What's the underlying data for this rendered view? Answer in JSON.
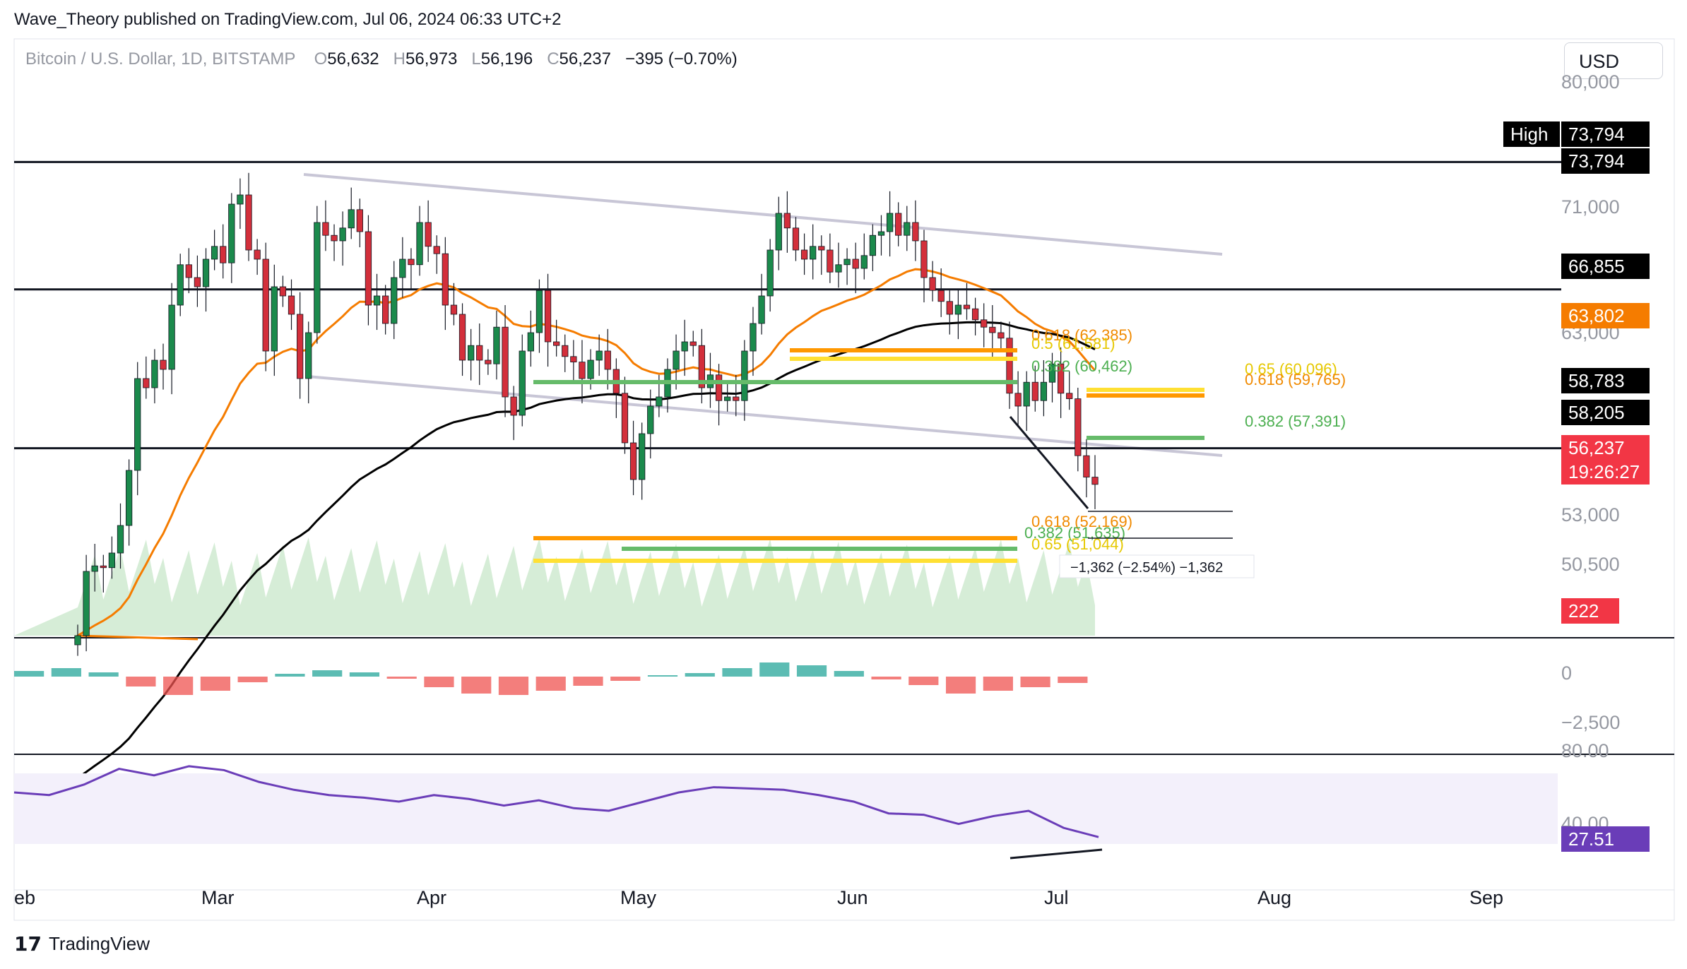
{
  "publisher_line": "Wave_Theory published on TradingView.com, Jul 06, 2024 06:33 UTC+2",
  "symbol": {
    "name": "Bitcoin / U.S. Dollar, 1D, BITSTAMP",
    "o_label": "O",
    "o": "56,632",
    "h_label": "H",
    "h": "56,973",
    "l_label": "L",
    "l": "56,196",
    "c_label": "C",
    "c": "56,237",
    "change": "−395 (−0.70%)"
  },
  "currency_button": "USD",
  "footer_brand": "TradingView",
  "colors": {
    "up": "#1b8a4c",
    "down": "#d32f3b",
    "ema50": "#f57c00",
    "ema200": "#000000",
    "fib_orange": "#ff9800",
    "fib_yellow": "#ffe033",
    "fib_green": "#66bb6a",
    "channel": "#c8c6d6",
    "rsi": "#6a3db8",
    "macd": "#2962ff",
    "signal": "#ff6d00"
  },
  "chart_data": [
    {
      "type": "candlestick",
      "title": "",
      "x_axis_labels": [
        "eb",
        "Mar",
        "Apr",
        "May",
        "Jun",
        "Jul",
        "Aug",
        "Sep"
      ],
      "y_axis_labels": [
        "80,000",
        "71,000",
        "63,000",
        "53,000",
        "50,500",
        "0",
        "−2,500",
        "80.00",
        "40.00"
      ],
      "price_tags": [
        {
          "label": "High",
          "value": "73,794",
          "style": "black"
        },
        {
          "label": "",
          "value": "73,794",
          "style": "black"
        },
        {
          "label": "",
          "value": "66,855",
          "style": "black"
        },
        {
          "label": "",
          "value": "63,802",
          "style": "orange"
        },
        {
          "label": "",
          "value": "58,783",
          "style": "black"
        },
        {
          "label": "",
          "value": "58,205",
          "style": "black"
        },
        {
          "label": "",
          "value": "56,237",
          "style": "red"
        },
        {
          "label": "",
          "value": "19:26:27",
          "style": "red"
        },
        {
          "label": "",
          "value": "222",
          "style": "red"
        },
        {
          "label": "",
          "value": "27.51",
          "style": "purple"
        }
      ],
      "horizontal_levels": [
        73794,
        66855,
        58205
      ],
      "fib_labels": [
        {
          "text": "0.618 (62,385)",
          "color": "orange"
        },
        {
          "text": "0.5 (61,581)",
          "color": "yellow"
        },
        {
          "text": "0.382 (60,462)",
          "color": "green"
        },
        {
          "text": "0.65 (60,096)",
          "color": "yellow"
        },
        {
          "text": "0.618 (59,765)",
          "color": "orange"
        },
        {
          "text": "0.382 (57,391)",
          "color": "green"
        },
        {
          "text": "0.618 (52,169)",
          "color": "orange"
        },
        {
          "text": "0.382 (51,635)",
          "color": "green"
        },
        {
          "text": "0.65 (51,044)",
          "color": "yellow"
        }
      ],
      "measure_label": "−1,362 (−2.54%) −1,362",
      "series": [
        {
          "name": "",
          "type": "candles",
          "values_close": [
            48000,
            51500,
            51800,
            51700,
            52500,
            54000,
            57000,
            62000,
            61500,
            63000,
            62500,
            66000,
            68200,
            67500,
            67000,
            68500,
            69200,
            68300,
            71500,
            72000,
            69000,
            68500,
            63500,
            67000,
            66500,
            65500,
            62000,
            64500,
            70500,
            69800,
            69500,
            70200,
            71200,
            70000,
            66000,
            66500,
            65000,
            67500,
            68500,
            68200,
            70500,
            69200,
            68800,
            66000,
            65500,
            63000,
            63800,
            63000,
            62800,
            64800,
            61000,
            60000,
            63500,
            64500,
            66800,
            64000,
            63800,
            63200,
            62900,
            62000,
            63000,
            63500,
            62500,
            61200,
            58500,
            56500,
            59000,
            60500,
            61000,
            62500,
            63500,
            64000,
            63800,
            61500,
            62200,
            60800,
            61000,
            60800,
            63500,
            65000,
            66500,
            69000,
            71000,
            70200,
            69000,
            68500,
            69200,
            69000,
            67800,
            68200,
            68500,
            68000,
            68700,
            69800,
            70000,
            71000,
            69800,
            70500,
            69500,
            67500,
            66800,
            66200,
            65500,
            66000,
            65800,
            65200,
            64800,
            64500,
            64200,
            61200,
            60500,
            61800,
            60800,
            61800,
            62800,
            61200,
            60900,
            57800,
            56632,
            56237
          ]
        }
      ]
    },
    {
      "type": "bar",
      "title": "",
      "note": "MACD histogram pane",
      "series": [
        {
          "name": "",
          "values": [
            80,
            120,
            60,
            -140,
            -260,
            -200,
            -80,
            40,
            90,
            60,
            -30,
            -150,
            -240,
            -260,
            -200,
            -130,
            -60,
            20,
            50,
            120,
            200,
            160,
            80,
            -40,
            -120,
            -240,
            -200,
            -150,
            -90
          ]
        }
      ]
    },
    {
      "type": "line",
      "title": "",
      "note": "RSI pane",
      "ylim": [
        20,
        90
      ],
      "series": [
        {
          "name": "",
          "values": [
            62,
            60,
            68,
            80,
            75,
            82,
            79,
            70,
            64,
            60,
            58,
            55,
            60,
            57,
            52,
            56,
            50,
            48,
            55,
            62,
            66,
            65,
            64,
            60,
            55,
            46,
            45,
            38,
            44,
            48,
            35,
            28
          ]
        }
      ]
    }
  ]
}
